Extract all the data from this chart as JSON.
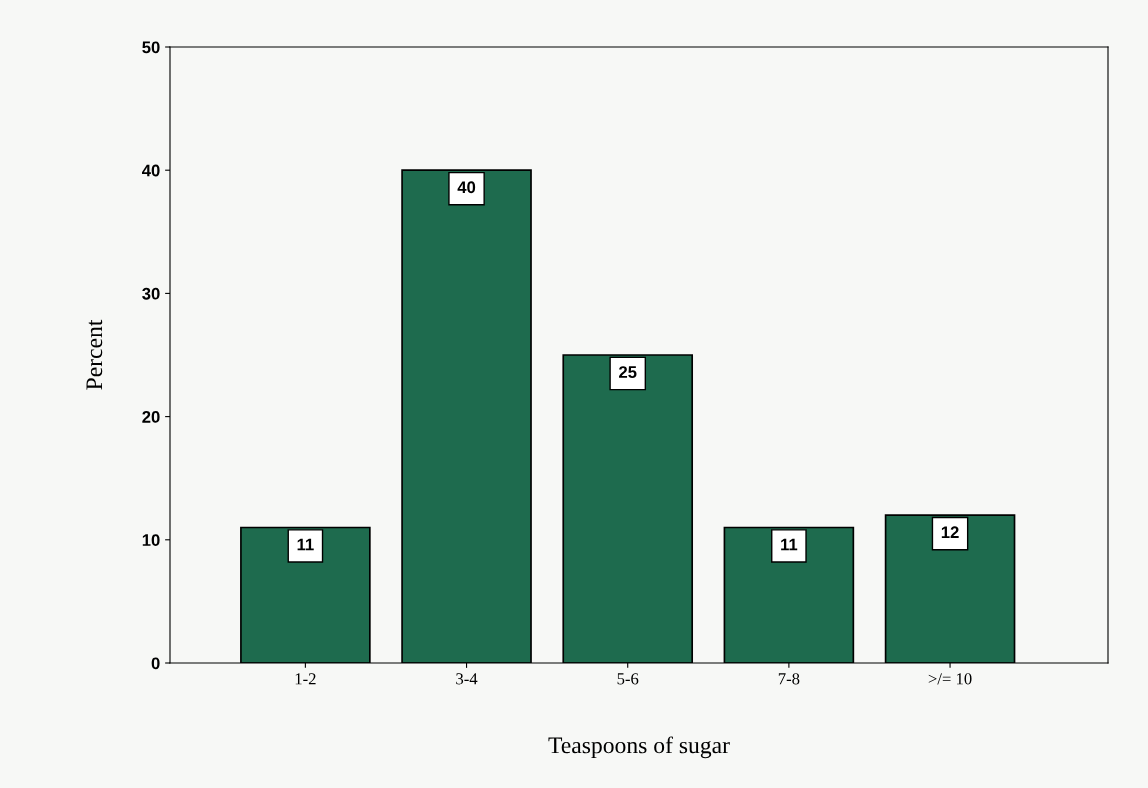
{
  "chart_data": {
    "type": "bar",
    "xlabel": "Teaspoons of sugar",
    "ylabel": "Percent",
    "categories": [
      "1-2",
      "3-4",
      "5-6",
      "7-8",
      ">/= 10"
    ],
    "values": [
      11,
      40,
      25,
      11,
      12
    ],
    "color": "#1e6b4e",
    "ylim": [
      0,
      50
    ],
    "yticks": [
      0,
      10,
      20,
      30,
      40,
      50
    ],
    "grid": false,
    "data_labels": true
  }
}
